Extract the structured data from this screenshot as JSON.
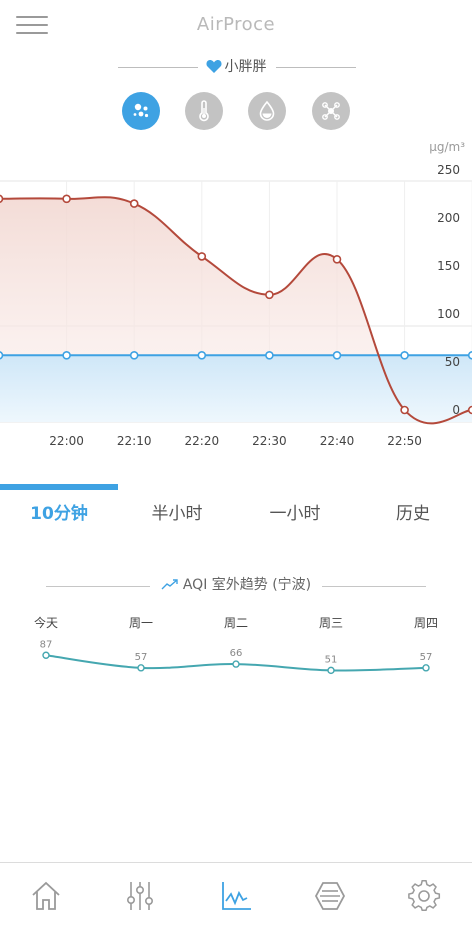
{
  "header": {
    "app_title": "AirProce",
    "device_name": "小胖胖"
  },
  "sensors": [
    {
      "name": "pm-dust-icon",
      "active": true
    },
    {
      "name": "thermometer-icon",
      "active": false
    },
    {
      "name": "humidity-drop-icon",
      "active": false
    },
    {
      "name": "network-nodes-icon",
      "active": false
    }
  ],
  "chart_data": {
    "type": "line",
    "unit": "μg/m³",
    "x": [
      "21:50",
      "22:00",
      "22:10",
      "22:20",
      "22:30",
      "22:40",
      "22:50",
      "23:00"
    ],
    "x_tick_labels": [
      "22:00",
      "22:10",
      "22:20",
      "22:30",
      "22:40",
      "22:50"
    ],
    "y_tick_labels": [
      "250",
      "200",
      "150",
      "100",
      "50",
      "0"
    ],
    "ylim": [
      0,
      250
    ],
    "grid": true,
    "series": [
      {
        "values": [
          220,
          220,
          215,
          160,
          120,
          157,
          0,
          0
        ],
        "color": "#b4493b"
      },
      {
        "values": [
          57,
          57,
          57,
          57,
          57,
          57,
          57,
          57
        ],
        "color": "#3ea2e3"
      }
    ]
  },
  "tabs": [
    {
      "label": "10分钟",
      "active": true
    },
    {
      "label": "半小时",
      "active": false
    },
    {
      "label": "一小时",
      "active": false
    },
    {
      "label": "历史",
      "active": false
    }
  ],
  "aqi": {
    "title": "AQI 室外趋势 (宁波)",
    "days": [
      "今天",
      "周一",
      "周二",
      "周三",
      "周四"
    ],
    "values": [
      87,
      57,
      66,
      51,
      57
    ],
    "color": "#45a7b0"
  },
  "bottom_nav": [
    {
      "name": "home-icon",
      "active": false
    },
    {
      "name": "sliders-icon",
      "active": false
    },
    {
      "name": "chart-icon",
      "active": true
    },
    {
      "name": "filter-hexagon-icon",
      "active": false
    },
    {
      "name": "settings-gear-icon",
      "active": false
    }
  ],
  "colors": {
    "accent": "#3ea2e3",
    "inactive_icon": "#c3c3c3",
    "pm_line": "#b4493b",
    "aqi_line": "#45a7b0"
  }
}
